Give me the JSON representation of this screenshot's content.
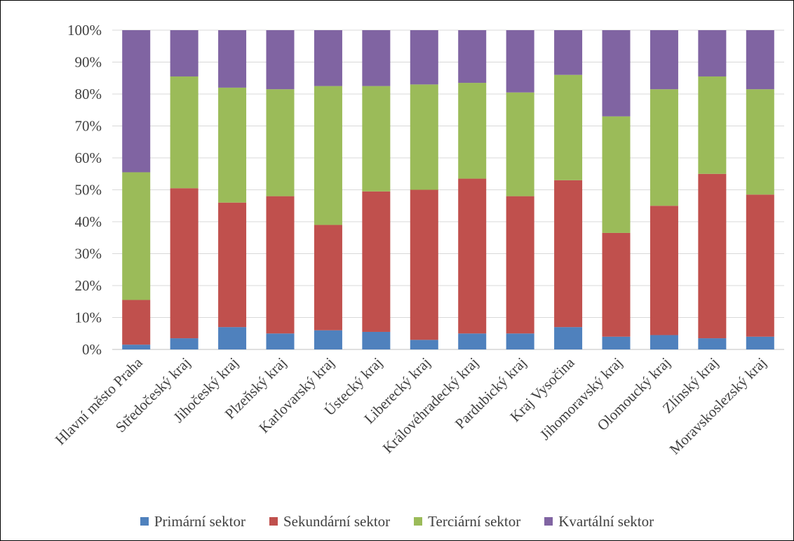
{
  "chart_data": {
    "type": "bar",
    "stacked": true,
    "percent_stacked": true,
    "categories": [
      "Hlavní město Praha",
      "Středočeský kraj",
      "Jihočeský kraj",
      "Plzeňský kraj",
      "Karlovarský kraj",
      "Ústecký kraj",
      "Liberecký kraj",
      "Královéhradecký kraj",
      "Pardubický kraj",
      "Kraj Vysočina",
      "Jihomoravský kraj",
      "Olomoucký kraj",
      "Zlínský kraj",
      "Moravskoslezský kraj"
    ],
    "series": [
      {
        "name": "Primární sektor",
        "color": "#4f81bd",
        "values": [
          1.5,
          3.5,
          7,
          5,
          6,
          5.5,
          3,
          5,
          5,
          7,
          4,
          4.5,
          3.5,
          4
        ]
      },
      {
        "name": "Sekundární sektor",
        "color": "#c0504d",
        "values": [
          14,
          47,
          39,
          43,
          33,
          44,
          47,
          48.5,
          43,
          46,
          32.5,
          40.5,
          51.5,
          44.5
        ]
      },
      {
        "name": "Terciární sektor",
        "color": "#9bbb59",
        "values": [
          40,
          35,
          36,
          33.5,
          43.5,
          33,
          33,
          30,
          32.5,
          33,
          36.5,
          36.5,
          30.5,
          33
        ]
      },
      {
        "name": "Kvartální sektor",
        "color": "#8064a2",
        "values": [
          44.5,
          14.5,
          18,
          18.5,
          17.5,
          17.5,
          17,
          16.5,
          19.5,
          14,
          27,
          18.5,
          14.5,
          18.5
        ]
      }
    ],
    "y_ticks": [
      "0%",
      "10%",
      "20%",
      "30%",
      "40%",
      "50%",
      "60%",
      "70%",
      "80%",
      "90%",
      "100%"
    ],
    "ylim": [
      0,
      100
    ],
    "grid": true,
    "legend_position": "bottom"
  }
}
